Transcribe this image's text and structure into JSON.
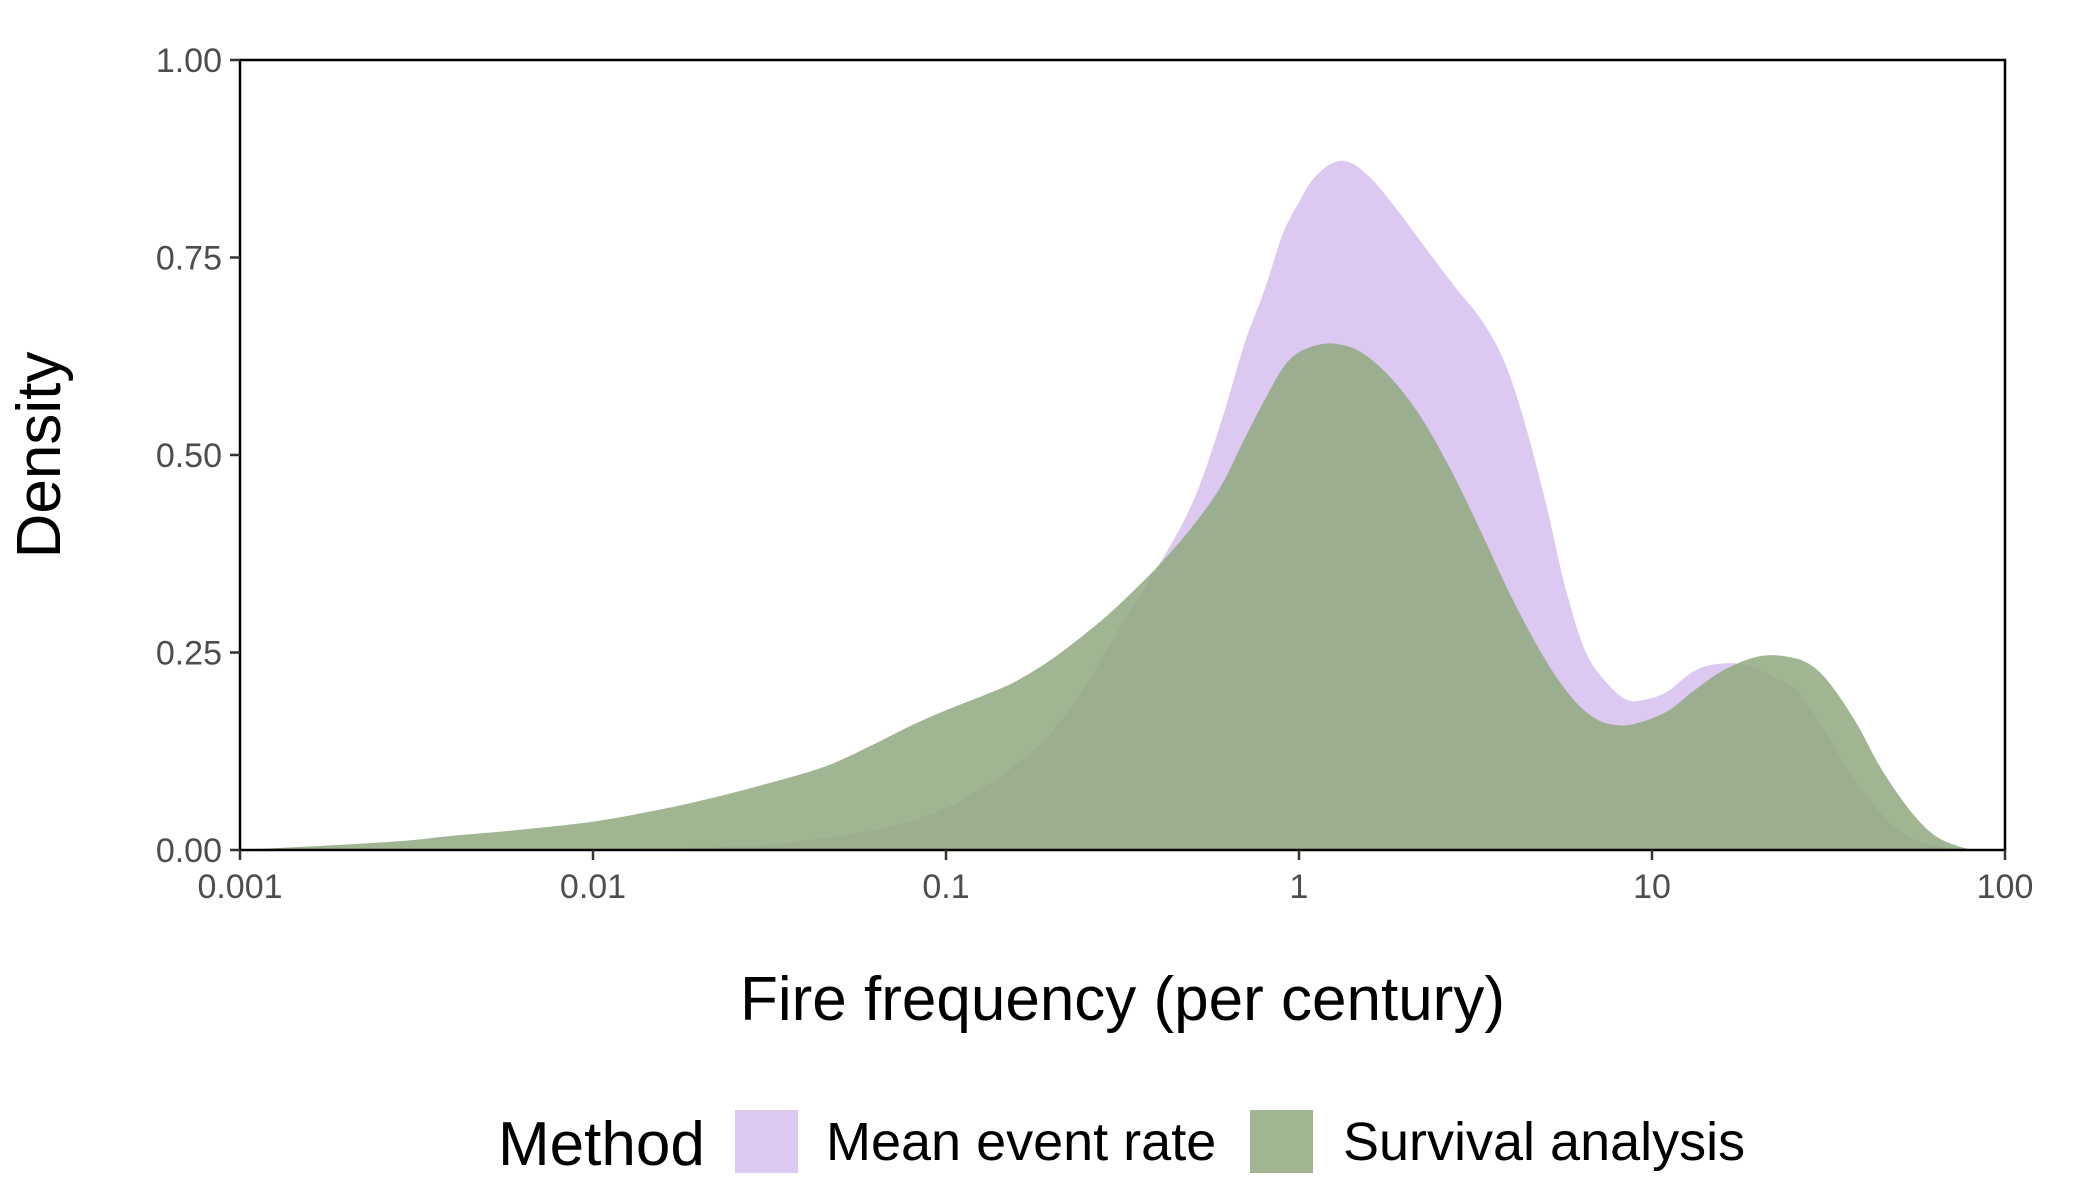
{
  "chart_data": {
    "type": "area",
    "subtype": "density",
    "title": "",
    "xlabel": "Fire frequency (per century)",
    "ylabel": "Density",
    "x_scale": "log10",
    "xlim": [
      0.001,
      100
    ],
    "ylim": [
      0,
      1
    ],
    "x_ticks": [
      {
        "value": 0.001,
        "label": "0.001"
      },
      {
        "value": 0.01,
        "label": "0.01"
      },
      {
        "value": 0.1,
        "label": "0.1"
      },
      {
        "value": 1,
        "label": "1"
      },
      {
        "value": 10,
        "label": "10"
      },
      {
        "value": 100,
        "label": "100"
      }
    ],
    "y_ticks": [
      {
        "value": 0,
        "label": "0.00"
      },
      {
        "value": 0.25,
        "label": "0.25"
      },
      {
        "value": 0.5,
        "label": "0.50"
      },
      {
        "value": 0.75,
        "label": "0.75"
      },
      {
        "value": 1,
        "label": "1.00"
      }
    ],
    "grid": false,
    "legend": {
      "title": "Method",
      "position": "bottom"
    },
    "series": [
      {
        "name": "Mean event rate",
        "color": "#dcc8f0",
        "points": [
          [
            0.0045,
            0.0
          ],
          [
            0.01,
            0.001
          ],
          [
            0.02,
            0.003
          ],
          [
            0.03,
            0.006
          ],
          [
            0.04,
            0.012
          ],
          [
            0.05,
            0.018
          ],
          [
            0.07,
            0.03
          ],
          [
            0.1,
            0.053
          ],
          [
            0.13,
            0.082
          ],
          [
            0.16,
            0.11
          ],
          [
            0.2,
            0.15
          ],
          [
            0.25,
            0.21
          ],
          [
            0.3,
            0.27
          ],
          [
            0.4,
            0.36
          ],
          [
            0.5,
            0.44
          ],
          [
            0.6,
            0.54
          ],
          [
            0.7,
            0.64
          ],
          [
            0.8,
            0.71
          ],
          [
            0.9,
            0.78
          ],
          [
            1.0,
            0.82
          ],
          [
            1.1,
            0.85
          ],
          [
            1.25,
            0.87
          ],
          [
            1.4,
            0.87
          ],
          [
            1.6,
            0.85
          ],
          [
            1.9,
            0.81
          ],
          [
            2.3,
            0.76
          ],
          [
            2.8,
            0.71
          ],
          [
            3.3,
            0.67
          ],
          [
            3.8,
            0.62
          ],
          [
            4.3,
            0.55
          ],
          [
            5.0,
            0.44
          ],
          [
            5.7,
            0.33
          ],
          [
            6.5,
            0.25
          ],
          [
            7.5,
            0.21
          ],
          [
            8.5,
            0.19
          ],
          [
            9.5,
            0.19
          ],
          [
            11,
            0.2
          ],
          [
            13,
            0.225
          ],
          [
            15,
            0.235
          ],
          [
            18,
            0.235
          ],
          [
            22,
            0.22
          ],
          [
            26,
            0.2
          ],
          [
            30,
            0.16
          ],
          [
            35,
            0.11
          ],
          [
            42,
            0.06
          ],
          [
            50,
            0.025
          ],
          [
            60,
            0.008
          ],
          [
            75,
            0.0
          ]
        ]
      },
      {
        "name": "Survival analysis",
        "color": "#8fa97f",
        "points": [
          [
            0.001,
            0.0
          ],
          [
            0.0015,
            0.004
          ],
          [
            0.002,
            0.007
          ],
          [
            0.003,
            0.012
          ],
          [
            0.004,
            0.018
          ],
          [
            0.006,
            0.025
          ],
          [
            0.01,
            0.036
          ],
          [
            0.015,
            0.05
          ],
          [
            0.02,
            0.062
          ],
          [
            0.03,
            0.082
          ],
          [
            0.045,
            0.105
          ],
          [
            0.06,
            0.13
          ],
          [
            0.08,
            0.158
          ],
          [
            0.1,
            0.177
          ],
          [
            0.13,
            0.197
          ],
          [
            0.16,
            0.215
          ],
          [
            0.2,
            0.242
          ],
          [
            0.25,
            0.275
          ],
          [
            0.3,
            0.305
          ],
          [
            0.4,
            0.36
          ],
          [
            0.5,
            0.41
          ],
          [
            0.6,
            0.46
          ],
          [
            0.7,
            0.52
          ],
          [
            0.8,
            0.57
          ],
          [
            0.9,
            0.61
          ],
          [
            1.0,
            0.63
          ],
          [
            1.15,
            0.64
          ],
          [
            1.3,
            0.64
          ],
          [
            1.5,
            0.63
          ],
          [
            1.8,
            0.6
          ],
          [
            2.2,
            0.55
          ],
          [
            2.7,
            0.48
          ],
          [
            3.3,
            0.4
          ],
          [
            4.0,
            0.32
          ],
          [
            5.0,
            0.24
          ],
          [
            6.0,
            0.19
          ],
          [
            7.0,
            0.165
          ],
          [
            8.0,
            0.158
          ],
          [
            9.0,
            0.16
          ],
          [
            11,
            0.175
          ],
          [
            13,
            0.2
          ],
          [
            16,
            0.228
          ],
          [
            20,
            0.245
          ],
          [
            24,
            0.245
          ],
          [
            28,
            0.235
          ],
          [
            32,
            0.21
          ],
          [
            38,
            0.16
          ],
          [
            45,
            0.1
          ],
          [
            55,
            0.045
          ],
          [
            65,
            0.015
          ],
          [
            80,
            0.0
          ]
        ]
      }
    ]
  }
}
